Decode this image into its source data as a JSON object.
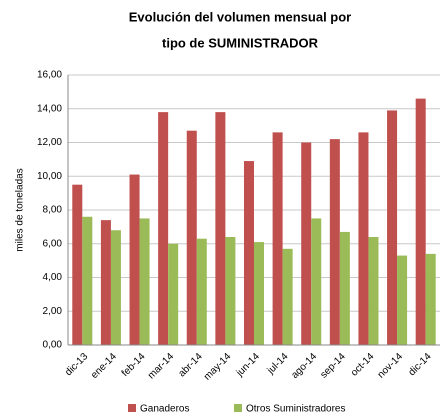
{
  "chart_data": {
    "type": "bar",
    "title": [
      "Evolución del volumen mensual por",
      "tipo de SUMINISTRADOR"
    ],
    "y_label": "miles de toneladas",
    "categories": [
      "dic-13",
      "ene-14",
      "feb-14",
      "mar-14",
      "abr-14",
      "may-14",
      "jun-14",
      "jul-14",
      "ago-14",
      "sep-14",
      "oct-14",
      "nov-14",
      "dic-14"
    ],
    "series": [
      {
        "name": "Ganaderos",
        "color": "#c0504d",
        "values": [
          9.5,
          7.4,
          10.1,
          13.8,
          12.7,
          13.8,
          10.9,
          12.6,
          12.0,
          12.2,
          12.6,
          13.9,
          14.6
        ]
      },
      {
        "name": "Otros Suministradores",
        "color": "#9bbb59",
        "values": [
          7.6,
          6.8,
          7.5,
          6.0,
          6.3,
          6.4,
          6.1,
          5.7,
          7.5,
          6.7,
          6.4,
          5.3,
          5.4
        ]
      }
    ],
    "ylim": [
      0,
      16
    ],
    "yticks": [
      {
        "value": 0,
        "label": "0,00"
      },
      {
        "value": 2,
        "label": "2,00"
      },
      {
        "value": 4,
        "label": "4,00"
      },
      {
        "value": 6,
        "label": "6,00"
      },
      {
        "value": 8,
        "label": "8,00"
      },
      {
        "value": 10,
        "label": "10,00"
      },
      {
        "value": 12,
        "label": "12,00"
      },
      {
        "value": 14,
        "label": "14,00"
      },
      {
        "value": 16,
        "label": "16,00"
      }
    ],
    "grid": true,
    "legend": "bottom"
  }
}
